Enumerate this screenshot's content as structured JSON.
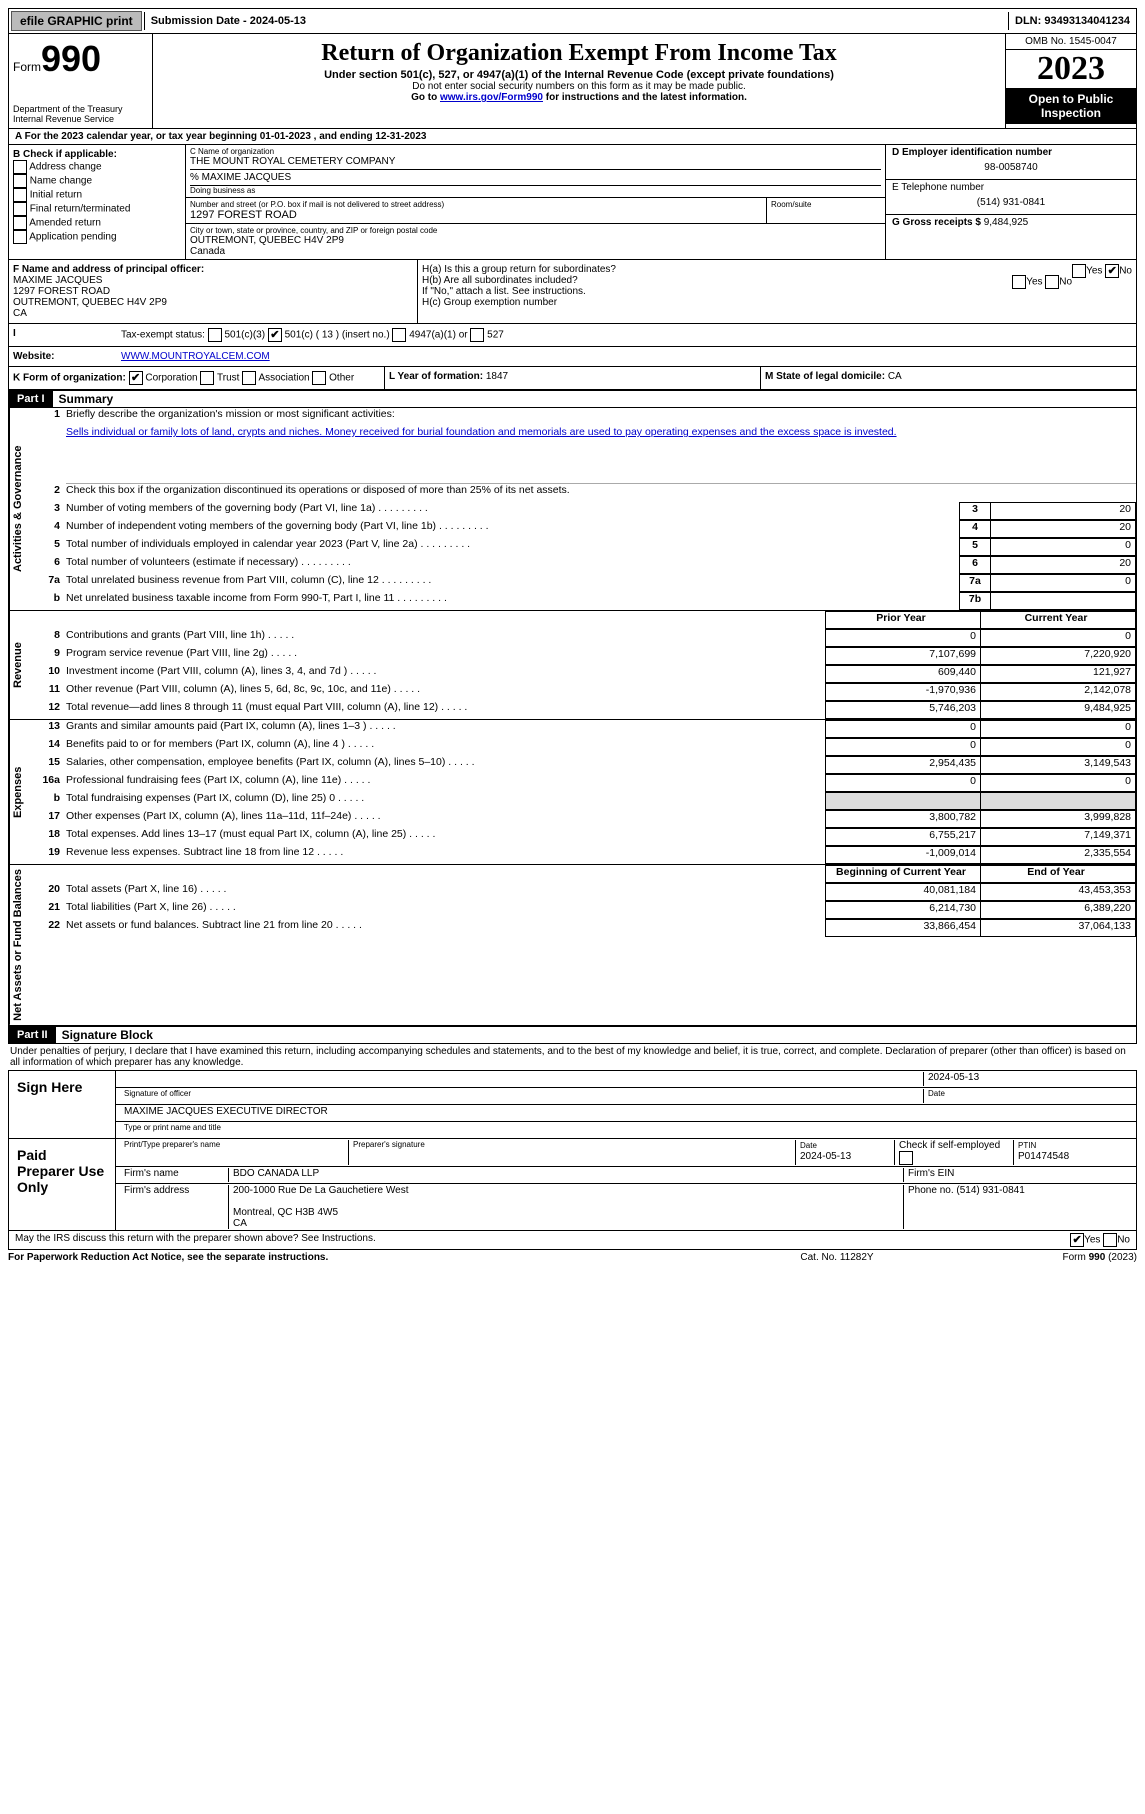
{
  "topbar": {
    "efile": "efile GRAPHIC print",
    "submission_label": "Submission Date - ",
    "submission_date": "2024-05-13",
    "dln_label": "DLN: ",
    "dln": "93493134041234"
  },
  "header": {
    "form_label": "Form",
    "form_number": "990",
    "dept": "Department of the Treasury\nInternal Revenue Service",
    "title": "Return of Organization Exempt From Income Tax",
    "sub1": "Under section 501(c), 527, or 4947(a)(1) of the Internal Revenue Code (except private foundations)",
    "sub2": "Do not enter social security numbers on this form as it may be made public.",
    "sub3_pre": "Go to ",
    "sub3_link": "www.irs.gov/Form990",
    "sub3_post": " for instructions and the latest information.",
    "omb": "OMB No. 1545-0047",
    "year": "2023",
    "open": "Open to Public Inspection"
  },
  "A": {
    "text_pre": "For the 2023 calendar year, or tax year beginning ",
    "begin": "01-01-2023",
    "mid": " , and ending ",
    "end": "12-31-2023"
  },
  "B": {
    "label": "B Check if applicable:",
    "opts": [
      "Address change",
      "Name change",
      "Initial return",
      "Final return/terminated",
      "Amended return",
      "Application pending"
    ]
  },
  "C": {
    "label": "C Name of organization",
    "name": "THE MOUNT ROYAL CEMETERY COMPANY",
    "care_of": "% MAXIME JACQUES",
    "dba_label": "Doing business as",
    "street_label": "Number and street (or P.O. box if mail is not delivered to street address)",
    "room_label": "Room/suite",
    "street": "1297 FOREST ROAD",
    "city_label": "City or town, state or province, country, and ZIP or foreign postal code",
    "city": "OUTREMONT, QUEBEC  H4V 2P9",
    "country": "Canada"
  },
  "D": {
    "label": "D Employer identification number",
    "ein": "98-0058740"
  },
  "E": {
    "label": "E Telephone number",
    "phone": "(514) 931-0841"
  },
  "G": {
    "label": "G Gross receipts $ ",
    "amount": "9,484,925"
  },
  "F": {
    "label": "F  Name and address of principal officer:",
    "name": "MAXIME JACQUES",
    "addr1": "1297 FOREST ROAD",
    "addr2": "OUTREMONT, QUEBEC  H4V 2P9",
    "addr3": "CA"
  },
  "H": {
    "a": "H(a)  Is this a group return for subordinates?",
    "b": "H(b)  Are all subordinates included?",
    "b2": "If \"No,\" attach a list. See instructions.",
    "c": "H(c)  Group exemption number ",
    "yes": "Yes",
    "no": "No"
  },
  "I": {
    "label": "Tax-exempt status:",
    "c3": "501(c)(3)",
    "c_other": "501(c) ( 13 ) (insert no.)",
    "a1": "4947(a)(1) or",
    "527": "527"
  },
  "J": {
    "label": "Website:",
    "url": "WWW.MOUNTROYALCEM.COM"
  },
  "K": {
    "label": "K Form of organization:",
    "corp": "Corporation",
    "trust": "Trust",
    "assoc": "Association",
    "other": "Other"
  },
  "L": {
    "label": "L Year of formation: ",
    "val": "1847"
  },
  "M": {
    "label": "M State of legal domicile: ",
    "val": "CA"
  },
  "part1": {
    "hdr": "Part I",
    "title": "Summary",
    "l1_label": "Briefly describe the organization's mission or most significant activities:",
    "l1_text": "Sells individual or family lots of land, crypts and niches. Money received for burial foundation and memorials are used to pay operating expenses and the excess space is invested.",
    "l2": "Check this box  if the organization discontinued its operations or disposed of more than 25% of its net assets.",
    "governance_label": "Activities & Governance",
    "revenue_label": "Revenue",
    "expenses_label": "Expenses",
    "netassets_label": "Net Assets or Fund Balances",
    "lines_gov": [
      {
        "n": "3",
        "t": "Number of voting members of the governing body (Part VI, line 1a)",
        "box": "3",
        "v": "20"
      },
      {
        "n": "4",
        "t": "Number of independent voting members of the governing body (Part VI, line 1b)",
        "box": "4",
        "v": "20"
      },
      {
        "n": "5",
        "t": "Total number of individuals employed in calendar year 2023 (Part V, line 2a)",
        "box": "5",
        "v": "0"
      },
      {
        "n": "6",
        "t": "Total number of volunteers (estimate if necessary)",
        "box": "6",
        "v": "20"
      },
      {
        "n": "7a",
        "t": "Total unrelated business revenue from Part VIII, column (C), line 12",
        "box": "7a",
        "v": "0"
      },
      {
        "n": "b",
        "t": "Net unrelated business taxable income from Form 990-T, Part I, line 11",
        "box": "7b",
        "v": ""
      }
    ],
    "prev_hdr": "Prior Year",
    "curr_hdr": "Current Year",
    "lines_rev": [
      {
        "n": "8",
        "t": "Contributions and grants (Part VIII, line 1h)",
        "p": "0",
        "c": "0"
      },
      {
        "n": "9",
        "t": "Program service revenue (Part VIII, line 2g)",
        "p": "7,107,699",
        "c": "7,220,920"
      },
      {
        "n": "10",
        "t": "Investment income (Part VIII, column (A), lines 3, 4, and 7d )",
        "p": "609,440",
        "c": "121,927"
      },
      {
        "n": "11",
        "t": "Other revenue (Part VIII, column (A), lines 5, 6d, 8c, 9c, 10c, and 11e)",
        "p": "-1,970,936",
        "c": "2,142,078"
      },
      {
        "n": "12",
        "t": "Total revenue—add lines 8 through 11 (must equal Part VIII, column (A), line 12)",
        "p": "5,746,203",
        "c": "9,484,925"
      }
    ],
    "lines_exp": [
      {
        "n": "13",
        "t": "Grants and similar amounts paid (Part IX, column (A), lines 1–3 )",
        "p": "0",
        "c": "0"
      },
      {
        "n": "14",
        "t": "Benefits paid to or for members (Part IX, column (A), line 4 )",
        "p": "0",
        "c": "0"
      },
      {
        "n": "15",
        "t": "Salaries, other compensation, employee benefits (Part IX, column (A), lines 5–10)",
        "p": "2,954,435",
        "c": "3,149,543"
      },
      {
        "n": "16a",
        "t": "Professional fundraising fees (Part IX, column (A), line 11e)",
        "p": "0",
        "c": "0"
      },
      {
        "n": "b",
        "t": "Total fundraising expenses (Part IX, column (D), line 25) 0",
        "p": "",
        "c": "",
        "shade": true
      },
      {
        "n": "17",
        "t": "Other expenses (Part IX, column (A), lines 11a–11d, 11f–24e)",
        "p": "3,800,782",
        "c": "3,999,828"
      },
      {
        "n": "18",
        "t": "Total expenses. Add lines 13–17 (must equal Part IX, column (A), line 25)",
        "p": "6,755,217",
        "c": "7,149,371"
      },
      {
        "n": "19",
        "t": "Revenue less expenses. Subtract line 18 from line 12",
        "p": "-1,009,014",
        "c": "2,335,554"
      }
    ],
    "begin_hdr": "Beginning of Current Year",
    "end_hdr": "End of Year",
    "lines_net": [
      {
        "n": "20",
        "t": "Total assets (Part X, line 16)",
        "p": "40,081,184",
        "c": "43,453,353"
      },
      {
        "n": "21",
        "t": "Total liabilities (Part X, line 26)",
        "p": "6,214,730",
        "c": "6,389,220"
      },
      {
        "n": "22",
        "t": "Net assets or fund balances. Subtract line 21 from line 20",
        "p": "33,866,454",
        "c": "37,064,133"
      }
    ]
  },
  "part2": {
    "hdr": "Part II",
    "title": "Signature Block",
    "perjury": "Under penalties of perjury, I declare that I have examined this return, including accompanying schedules and statements, and to the best of my knowledge and belief, it is true, correct, and complete. Declaration of preparer (other than officer) is based on all information of which preparer has any knowledge.",
    "sign_here": "Sign Here",
    "sig_officer": "Signature of officer",
    "sig_name": "MAXIME JACQUES EXECUTIVE DIRECTOR",
    "sig_type": "Type or print name and title",
    "date_label": "Date",
    "date": "2024-05-13",
    "paid": "Paid Preparer Use Only",
    "prep_name_lbl": "Print/Type preparer's name",
    "prep_sig_lbl": "Preparer's signature",
    "prep_date": "2024-05-13",
    "check_se": "Check  if self-employed",
    "ptin_lbl": "PTIN",
    "ptin": "P01474548",
    "firm_name_lbl": "Firm's name",
    "firm_name": "BDO CANADA LLP",
    "firm_ein_lbl": "Firm's EIN",
    "firm_addr_lbl": "Firm's address",
    "firm_addr": "200-1000 Rue De La Gauchetiere West\n\nMontreal, QC  H3B 4W5\nCA",
    "phone_lbl": "Phone no. ",
    "phone": "(514) 931-0841",
    "discuss": "May the IRS discuss this return with the preparer shown above? See Instructions.",
    "yes": "Yes",
    "no": "No"
  },
  "footer": {
    "f1": "For Paperwork Reduction Act Notice, see the separate instructions.",
    "f2": "Cat. No. 11282Y",
    "f3a": "Form ",
    "f3b": "990",
    "f3c": " (2023)"
  }
}
